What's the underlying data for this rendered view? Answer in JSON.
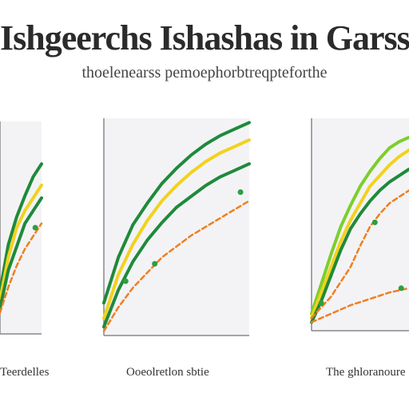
{
  "header": {
    "title": "Ishgeerchs Ishashas in Garssa",
    "subtitle": "thoelenearss pemoephorbtreqpteforthe"
  },
  "colors": {
    "dark_green": "#1f8a3a",
    "light_green": "#7ccf2b",
    "yellow": "#f2d21c",
    "orange": "#f07f1e",
    "point_green": "#2e9e3f",
    "plot_bg": "#f3f3f6",
    "axis": "#888888"
  },
  "chart_data": [
    {
      "type": "line",
      "title": "",
      "caption": "Teerdelles",
      "xlim": [
        0,
        10
      ],
      "ylim": [
        0,
        10
      ],
      "grid": false,
      "series": [
        {
          "color": "dark_green",
          "x": [
            0,
            2,
            4,
            6,
            8,
            10
          ],
          "y": [
            2.0,
            4.2,
            5.5,
            6.5,
            7.4,
            8.0
          ]
        },
        {
          "color": "yellow",
          "x": [
            0,
            2,
            4,
            6,
            8,
            10
          ],
          "y": [
            1.6,
            3.6,
            5.0,
            5.8,
            6.4,
            7.0
          ]
        },
        {
          "color": "dark_green",
          "x": [
            0,
            2,
            4,
            6,
            8,
            10
          ],
          "y": [
            1.2,
            3.0,
            4.1,
            5.2,
            5.8,
            6.4
          ]
        },
        {
          "color": "orange",
          "dashed": true,
          "x": [
            0,
            2,
            4,
            6,
            8,
            10
          ],
          "y": [
            1.0,
            2.2,
            3.2,
            4.0,
            4.6,
            5.2
          ]
        }
      ],
      "points": [
        {
          "x": 8.5,
          "y": 5.0,
          "color": "point_green"
        }
      ]
    },
    {
      "type": "line",
      "title": "",
      "caption": "Ooeolretlon sbtie",
      "xlim": [
        0,
        10
      ],
      "ylim": [
        0,
        10
      ],
      "grid": false,
      "series": [
        {
          "color": "dark_green",
          "x": [
            0,
            1,
            2,
            3,
            4,
            5,
            6,
            7,
            8,
            9,
            10
          ],
          "y": [
            1.5,
            3.6,
            5.1,
            6.1,
            7.0,
            7.7,
            8.3,
            8.8,
            9.2,
            9.5,
            9.8
          ]
        },
        {
          "color": "yellow",
          "x": [
            0,
            1,
            2,
            3,
            4,
            5,
            6,
            7,
            8,
            9,
            10
          ],
          "y": [
            0.8,
            2.8,
            4.2,
            5.3,
            6.2,
            6.9,
            7.5,
            8.0,
            8.4,
            8.7,
            9.0
          ]
        },
        {
          "color": "dark_green",
          "x": [
            0,
            1,
            2,
            3,
            4,
            5,
            6,
            7,
            8,
            9,
            10
          ],
          "y": [
            0.4,
            2.1,
            3.4,
            4.4,
            5.2,
            5.9,
            6.4,
            6.9,
            7.3,
            7.6,
            7.9
          ]
        },
        {
          "color": "orange",
          "dashed": true,
          "x": [
            0,
            1,
            2,
            3,
            4,
            5,
            6,
            7,
            8,
            9,
            10
          ],
          "y": [
            0.2,
            1.3,
            2.2,
            2.9,
            3.6,
            4.1,
            4.6,
            5.0,
            5.4,
            5.8,
            6.2
          ]
        }
      ],
      "points": [
        {
          "x": 1.5,
          "y": 2.5,
          "color": "point_green"
        },
        {
          "x": 3.5,
          "y": 3.3,
          "color": "point_green"
        },
        {
          "x": 9.4,
          "y": 6.6,
          "color": "point_green"
        }
      ]
    },
    {
      "type": "line",
      "title": "",
      "caption": "The ghloranoure",
      "xlim": [
        0,
        10
      ],
      "ylim": [
        0,
        10
      ],
      "grid": false,
      "series": [
        {
          "color": "light_green",
          "x": [
            0,
            1,
            2,
            3,
            4,
            5,
            6,
            7,
            8,
            9,
            10
          ],
          "y": [
            0.8,
            2.2,
            3.6,
            4.9,
            5.9,
            6.8,
            7.5,
            8.1,
            8.6,
            8.9,
            9.1
          ]
        },
        {
          "color": "yellow",
          "x": [
            0,
            1,
            2,
            3,
            4,
            5,
            6,
            7,
            8,
            9,
            10
          ],
          "y": [
            0.6,
            1.8,
            3.0,
            4.2,
            5.2,
            6.0,
            6.8,
            7.3,
            7.8,
            8.2,
            8.5
          ]
        },
        {
          "color": "dark_green",
          "x": [
            0,
            1,
            2,
            3,
            4,
            5,
            6,
            7,
            8,
            9,
            10
          ],
          "y": [
            0.4,
            1.4,
            2.6,
            3.8,
            4.8,
            5.5,
            6.1,
            6.6,
            7.0,
            7.3,
            7.6
          ]
        },
        {
          "color": "orange",
          "dashed": true,
          "x": [
            0,
            2,
            4,
            5,
            6,
            7,
            8,
            9,
            10
          ],
          "y": [
            0.6,
            1.6,
            3.0,
            4.0,
            4.9,
            5.5,
            6.0,
            6.3,
            6.6
          ]
        },
        {
          "color": "orange",
          "dashed": true,
          "x": [
            0,
            2,
            4,
            6,
            8,
            10
          ],
          "y": [
            0.4,
            0.8,
            1.2,
            1.5,
            1.8,
            2.0
          ]
        }
      ],
      "points": [
        {
          "x": 1.0,
          "y": 1.3,
          "color": "point_green"
        },
        {
          "x": 6.5,
          "y": 5.1,
          "color": "point_green"
        },
        {
          "x": 9.2,
          "y": 2.0,
          "color": "point_green"
        }
      ]
    }
  ]
}
